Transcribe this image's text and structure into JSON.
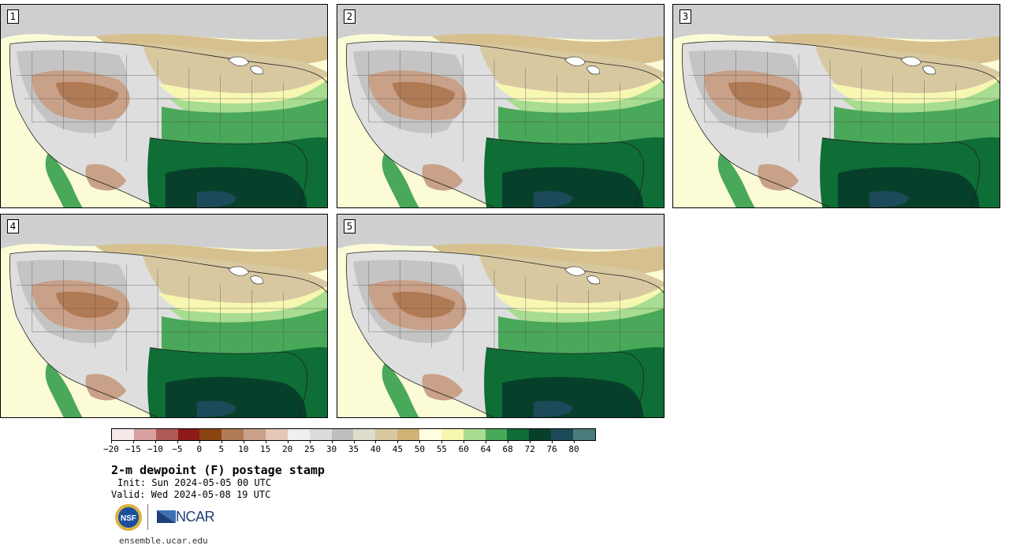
{
  "panels": [
    {
      "label": "1"
    },
    {
      "label": "2"
    },
    {
      "label": "3"
    },
    {
      "label": "4"
    },
    {
      "label": "5"
    }
  ],
  "colorbar": {
    "colors": [
      "#f5e8e8",
      "#d9a0a0",
      "#b05a5a",
      "#8e1a1a",
      "#8b4513",
      "#b07a55",
      "#c9a088",
      "#e3c8b8",
      "#efefef",
      "#dcdcdc",
      "#bebebe",
      "#e0dccc",
      "#d8c8a0",
      "#cfb276",
      "#fdfde0",
      "#f7f7b2",
      "#a8dc90",
      "#4aa85a",
      "#0e6e36",
      "#07402a",
      "#1d4a5a",
      "#4a7a7a"
    ],
    "ticks": [
      "−20",
      "−15",
      "−10",
      "−5",
      "0",
      "5",
      "10",
      "15",
      "20",
      "25",
      "30",
      "35",
      "40",
      "45",
      "50",
      "55",
      "60",
      "64",
      "68",
      "72",
      "76",
      "80"
    ]
  },
  "title": "2-m dewpoint (F) postage stamp",
  "init": "Init: Sun 2024-05-05 00 UTC",
  "valid": "Valid: Wed 2024-05-08 19 UTC",
  "logos": {
    "nsf": "NSF",
    "ncar": "NCAR"
  },
  "site": "ensemble.ucar.edu"
}
